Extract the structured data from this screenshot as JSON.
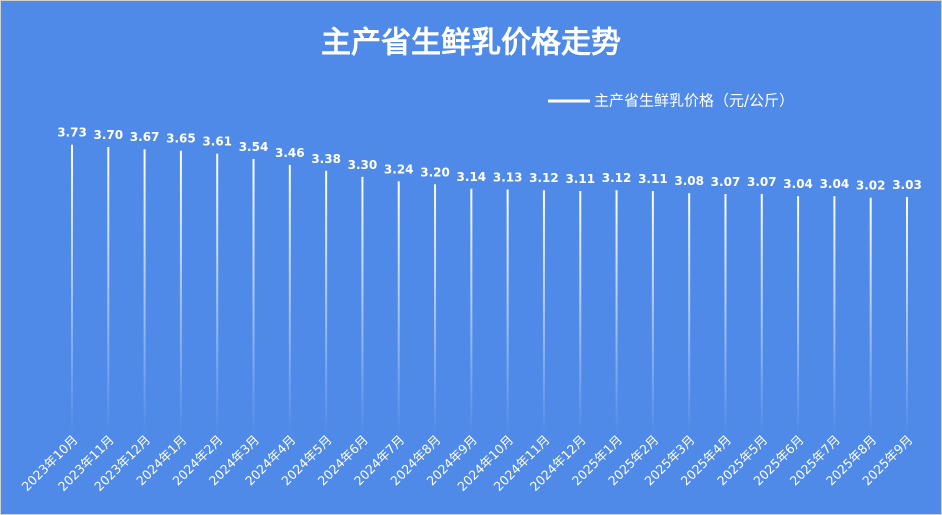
{
  "chart_data": {
    "type": "bar",
    "title": "主产省生鲜乳价格走势",
    "categories": [
      "2023年10月",
      "2023年11月",
      "2023年12月",
      "2024年1月",
      "2024年2月",
      "2024年3月",
      "2024年4月",
      "2024年5月",
      "2024年6月",
      "2024年7月",
      "2024年8月",
      "2024年9月",
      "2024年10月",
      "2024年11月",
      "2024年12月",
      "2025年1月",
      "2025年2月",
      "2025年3月",
      "2025年4月",
      "2025年5月",
      "2025年6月",
      "2025年7月",
      "2025年8月",
      "2025年9月"
    ],
    "series": [
      {
        "name": "主产省生鲜乳价格（元/公斤）",
        "color": "#ffffff",
        "values": [
          3.73,
          3.7,
          3.67,
          3.65,
          3.61,
          3.54,
          3.46,
          3.38,
          3.3,
          3.24,
          3.2,
          3.14,
          3.13,
          3.12,
          3.11,
          3.12,
          3.11,
          3.08,
          3.07,
          3.07,
          3.04,
          3.04,
          3.02,
          3.03
        ],
        "value_labels": [
          "3.73",
          "3.70",
          "3.67",
          "3.65",
          "3.61",
          "3.54",
          "3.46",
          "3.38",
          "3.30",
          "3.24",
          "3.20",
          "3.14",
          "3.13",
          "3.12",
          "3.11",
          "3.12",
          "3.11",
          "3.08",
          "3.07",
          "3.07",
          "3.04",
          "3.04",
          "3.02",
          "3.03"
        ]
      }
    ],
    "legend": "top-right"
  }
}
